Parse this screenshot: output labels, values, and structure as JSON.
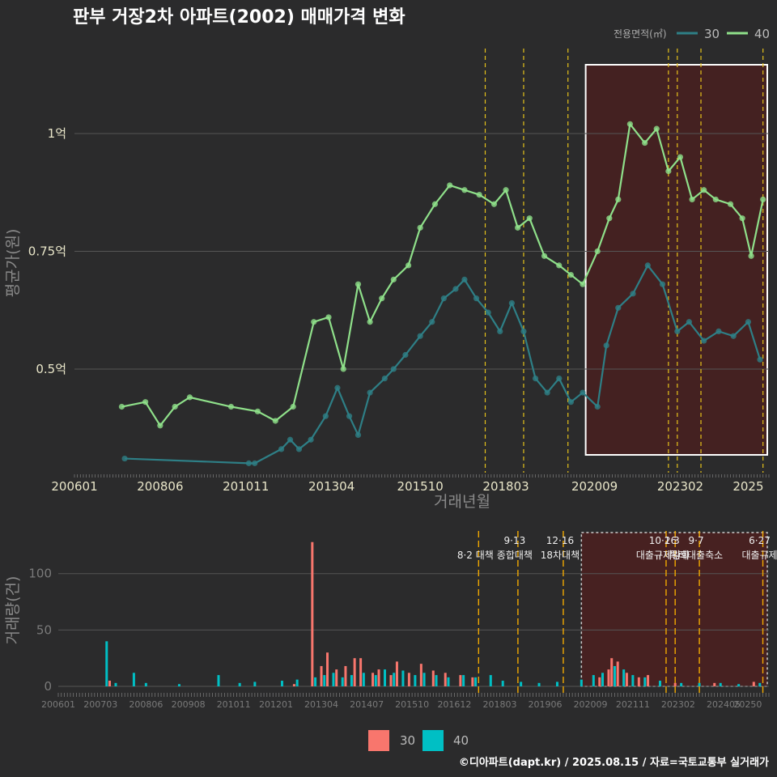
{
  "title": "판부 거장2차 아파트(2002) 매매가격 변화",
  "footer": "©디아파트(dapt.kr) / 2025.08.15 / 자료=국토교통부 실거래가",
  "colors": {
    "background": "#2b2b2c",
    "s30_line": "#2e7f86",
    "s40_line": "#8fe08a",
    "bar30": "#f8766d",
    "bar40": "#00bfc4",
    "policy_line": "#e6c21a",
    "highlight_fill": "#5a1a1a",
    "grid": "#555555"
  },
  "chart_data": [
    {
      "type": "line",
      "title": "판부 거장2차 아파트(2002) 매매가격 변화",
      "xlabel": "거래년월",
      "ylabel": "평균가(원)",
      "x_ticks": [
        "200601",
        "200806",
        "201011",
        "201304",
        "201510",
        "201803",
        "202009",
        "202302",
        "2025"
      ],
      "y_ticks": [
        "0.5억",
        "0.75억",
        "1억"
      ],
      "y_tick_values": [
        0.5,
        0.75,
        1.0
      ],
      "ylim": [
        0.28,
        1.17
      ],
      "xlim": [
        "2006-01",
        "2025-08"
      ],
      "legend_title": "전용면적(㎡)",
      "legend_position": "top-right",
      "grid": true,
      "series": [
        {
          "name": "30",
          "points": [
            [
              "2007-06",
              0.31
            ],
            [
              "2010-12",
              0.3
            ],
            [
              "2011-02",
              0.3
            ],
            [
              "2011-11",
              0.33
            ],
            [
              "2012-02",
              0.35
            ],
            [
              "2012-05",
              0.33
            ],
            [
              "2012-09",
              0.35
            ],
            [
              "2013-02",
              0.4
            ],
            [
              "2013-06",
              0.46
            ],
            [
              "2013-10",
              0.4
            ],
            [
              "2014-01",
              0.36
            ],
            [
              "2014-05",
              0.45
            ],
            [
              "2014-10",
              0.48
            ],
            [
              "2015-01",
              0.5
            ],
            [
              "2015-05",
              0.53
            ],
            [
              "2015-10",
              0.57
            ],
            [
              "2016-02",
              0.6
            ],
            [
              "2016-06",
              0.65
            ],
            [
              "2016-10",
              0.67
            ],
            [
              "2017-01",
              0.69
            ],
            [
              "2017-05",
              0.65
            ],
            [
              "2017-09",
              0.62
            ],
            [
              "2018-01",
              0.58
            ],
            [
              "2018-05",
              0.64
            ],
            [
              "2018-09",
              0.58
            ],
            [
              "2019-01",
              0.48
            ],
            [
              "2019-05",
              0.45
            ],
            [
              "2019-09",
              0.48
            ],
            [
              "2020-01",
              0.43
            ],
            [
              "2020-05",
              0.45
            ],
            [
              "2020-10",
              0.42
            ],
            [
              "2021-01",
              0.55
            ],
            [
              "2021-05",
              0.63
            ],
            [
              "2021-10",
              0.66
            ],
            [
              "2022-03",
              0.72
            ],
            [
              "2022-08",
              0.68
            ],
            [
              "2023-01",
              0.58
            ],
            [
              "2023-05",
              0.6
            ],
            [
              "2023-10",
              0.56
            ],
            [
              "2024-03",
              0.58
            ],
            [
              "2024-08",
              0.57
            ],
            [
              "2025-01",
              0.6
            ],
            [
              "2025-05",
              0.52
            ]
          ]
        },
        {
          "name": "40",
          "points": [
            [
              "2007-05",
              0.42
            ],
            [
              "2008-01",
              0.43
            ],
            [
              "2008-06",
              0.38
            ],
            [
              "2008-11",
              0.42
            ],
            [
              "2009-04",
              0.44
            ],
            [
              "2010-06",
              0.42
            ],
            [
              "2011-03",
              0.41
            ],
            [
              "2011-09",
              0.39
            ],
            [
              "2012-03",
              0.42
            ],
            [
              "2012-10",
              0.6
            ],
            [
              "2013-03",
              0.61
            ],
            [
              "2013-08",
              0.5
            ],
            [
              "2014-01",
              0.68
            ],
            [
              "2014-05",
              0.6
            ],
            [
              "2014-09",
              0.65
            ],
            [
              "2015-01",
              0.69
            ],
            [
              "2015-06",
              0.72
            ],
            [
              "2015-10",
              0.8
            ],
            [
              "2016-03",
              0.85
            ],
            [
              "2016-08",
              0.89
            ],
            [
              "2017-01",
              0.88
            ],
            [
              "2017-06",
              0.87
            ],
            [
              "2017-11",
              0.85
            ],
            [
              "2018-03",
              0.88
            ],
            [
              "2018-07",
              0.8
            ],
            [
              "2018-11",
              0.82
            ],
            [
              "2019-04",
              0.74
            ],
            [
              "2019-09",
              0.72
            ],
            [
              "2020-01",
              0.7
            ],
            [
              "2020-05",
              0.68
            ],
            [
              "2020-10",
              0.75
            ],
            [
              "2021-02",
              0.82
            ],
            [
              "2021-05",
              0.86
            ],
            [
              "2021-09",
              1.02
            ],
            [
              "2022-02",
              0.98
            ],
            [
              "2022-06",
              1.01
            ],
            [
              "2022-10",
              0.92
            ],
            [
              "2023-02",
              0.95
            ],
            [
              "2023-06",
              0.86
            ],
            [
              "2023-10",
              0.88
            ],
            [
              "2024-02",
              0.86
            ],
            [
              "2024-07",
              0.85
            ],
            [
              "2024-11",
              0.82
            ],
            [
              "2025-02",
              0.74
            ],
            [
              "2025-06",
              0.86
            ]
          ]
        }
      ]
    },
    {
      "type": "bar",
      "ylabel": "거래량(건)",
      "x_ticks": [
        "200601",
        "200703",
        "200806",
        "200908",
        "201011",
        "201201",
        "201304",
        "201407",
        "201510",
        "201612",
        "201803",
        "201906",
        "202009",
        "202111",
        "202302",
        "202405",
        "20250"
      ],
      "y_ticks": [
        "0",
        "50",
        "100"
      ],
      "y_tick_values": [
        0,
        50,
        100
      ],
      "ylim": [
        0,
        135
      ],
      "grid": true,
      "legend_position": "bottom",
      "series": [
        {
          "name": "30",
          "values": [
            [
              "2007-06",
              5
            ],
            [
              "2012-07",
              2
            ],
            [
              "2013-01",
              128
            ],
            [
              "2013-04",
              18
            ],
            [
              "2013-06",
              30
            ],
            [
              "2013-09",
              15
            ],
            [
              "2013-12",
              18
            ],
            [
              "2014-03",
              25
            ],
            [
              "2014-05",
              25
            ],
            [
              "2014-09",
              12
            ],
            [
              "2014-11",
              15
            ],
            [
              "2015-03",
              10
            ],
            [
              "2015-05",
              22
            ],
            [
              "2015-09",
              12
            ],
            [
              "2016-01",
              20
            ],
            [
              "2016-05",
              14
            ],
            [
              "2016-09",
              12
            ],
            [
              "2017-02",
              10
            ],
            [
              "2017-06",
              8
            ],
            [
              "2020-12",
              8
            ],
            [
              "2021-03",
              15
            ],
            [
              "2021-04",
              25
            ],
            [
              "2021-06",
              22
            ],
            [
              "2021-09",
              12
            ],
            [
              "2022-01",
              8
            ],
            [
              "2022-04",
              10
            ],
            [
              "2023-01",
              3
            ],
            [
              "2024-02",
              3
            ],
            [
              "2025-03",
              4
            ]
          ]
        },
        {
          "name": "40",
          "values": [
            [
              "2007-05",
              40
            ],
            [
              "2007-08",
              3
            ],
            [
              "2008-02",
              12
            ],
            [
              "2008-06",
              3
            ],
            [
              "2009-05",
              2
            ],
            [
              "2010-06",
              10
            ],
            [
              "2011-01",
              3
            ],
            [
              "2011-06",
              4
            ],
            [
              "2012-03",
              5
            ],
            [
              "2012-08",
              6
            ],
            [
              "2013-02",
              8
            ],
            [
              "2013-05",
              10
            ],
            [
              "2013-08",
              12
            ],
            [
              "2013-11",
              8
            ],
            [
              "2014-02",
              10
            ],
            [
              "2014-06",
              12
            ],
            [
              "2014-10",
              10
            ],
            [
              "2015-01",
              15
            ],
            [
              "2015-04",
              12
            ],
            [
              "2015-07",
              14
            ],
            [
              "2015-11",
              10
            ],
            [
              "2016-02",
              12
            ],
            [
              "2016-06",
              10
            ],
            [
              "2016-10",
              8
            ],
            [
              "2017-03",
              10
            ],
            [
              "2017-07",
              8
            ],
            [
              "2017-12",
              10
            ],
            [
              "2018-04",
              5
            ],
            [
              "2018-10",
              4
            ],
            [
              "2019-04",
              3
            ],
            [
              "2019-10",
              4
            ],
            [
              "2020-06",
              6
            ],
            [
              "2020-10",
              10
            ],
            [
              "2021-01",
              12
            ],
            [
              "2021-05",
              18
            ],
            [
              "2021-08",
              15
            ],
            [
              "2021-11",
              10
            ],
            [
              "2022-03",
              8
            ],
            [
              "2022-08",
              5
            ],
            [
              "2023-03",
              3
            ],
            [
              "2023-09",
              3
            ],
            [
              "2024-04",
              3
            ],
            [
              "2024-10",
              2
            ],
            [
              "2025-05",
              3
            ]
          ]
        }
      ]
    }
  ],
  "policy_events": [
    {
      "date": "2017-08",
      "label1": "",
      "label2": "8·2 대책"
    },
    {
      "date": "2018-09",
      "label1": "9·13",
      "label2": "종합대책"
    },
    {
      "date": "2019-12",
      "label1": "12·16",
      "label2": "18차대책"
    },
    {
      "date": "2022-10",
      "label1": "10·26",
      "label2": "대출규제강화"
    },
    {
      "date": "2023-01",
      "label1": "1·3",
      "label2": "규제완화"
    },
    {
      "date": "2023-09",
      "label1": "9·7",
      "label2": "특례대출축소"
    },
    {
      "date": "2025-06",
      "label1": "6·27",
      "label2": "대출규제"
    }
  ],
  "highlight": {
    "from": "2020-06",
    "to": "2025-08"
  }
}
